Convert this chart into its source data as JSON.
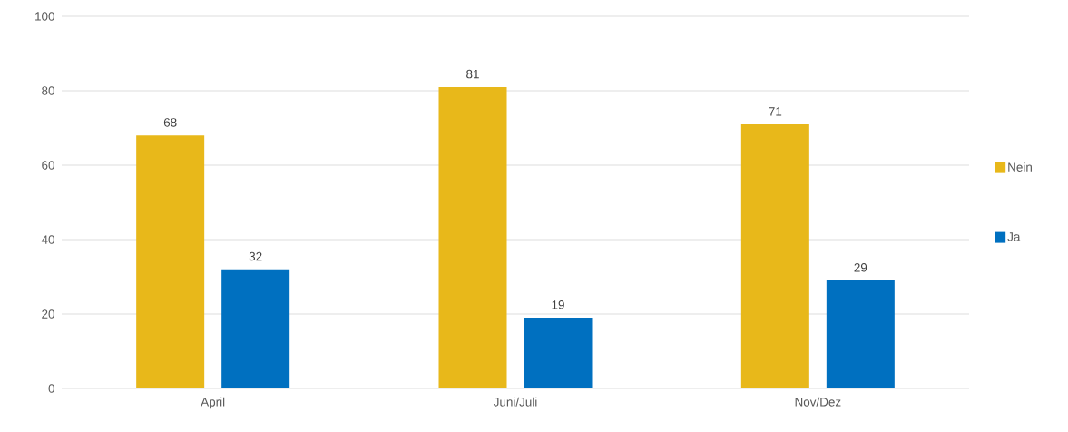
{
  "chart_data": {
    "type": "bar",
    "categories": [
      "April",
      "Juni/Juli",
      "Nov/Dez"
    ],
    "series": [
      {
        "name": "Nein",
        "color": "#e8b81a",
        "values": [
          68,
          81,
          71
        ]
      },
      {
        "name": "Ja",
        "color": "#0070c0",
        "values": [
          32,
          19,
          29
        ]
      }
    ],
    "ylim": [
      0,
      100
    ],
    "yticks": [
      0,
      20,
      40,
      60,
      80,
      100
    ],
    "grid": "y",
    "legend": "right",
    "data_labels": true
  }
}
